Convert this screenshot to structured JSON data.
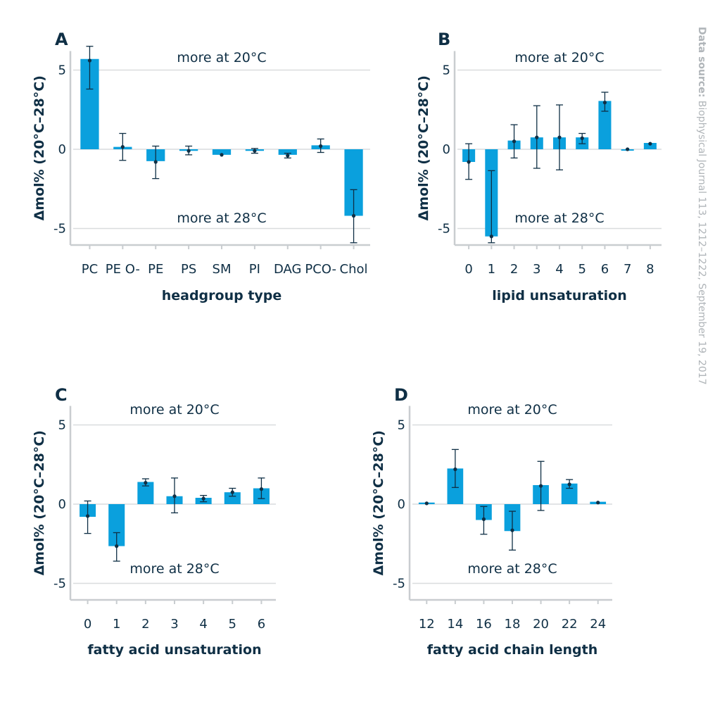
{
  "source": {
    "label": "Data source:",
    "text": " Biophysical Journal 113, 1212–1222, September 19, 2017"
  },
  "colors": {
    "bar": "#0aa0dd",
    "ink": "#0f2f45",
    "grid": "#d9dcde",
    "axis": "#c9cdd0"
  },
  "chart_data": [
    {
      "panel": "A",
      "type": "bar",
      "xlabel": "headgroup type",
      "ylabel": "Δmol% (20°C–28°C)",
      "ylim": [
        -5.6,
        6.2
      ],
      "yticks": [
        -5,
        0,
        5
      ],
      "ytick_labels": [
        "-5",
        "0",
        "5"
      ],
      "annotation_top": "more at 20°C",
      "annotation_bottom": "more at 28°C",
      "categories": [
        "PC",
        "PE O-",
        "PE",
        "PS",
        "SM",
        "PI",
        "DAG",
        "PCO-",
        "Chol"
      ],
      "values": [
        5.7,
        0.15,
        -0.75,
        -0.1,
        -0.35,
        -0.1,
        -0.35,
        0.25,
        -4.2
      ],
      "means": [
        5.6,
        0.15,
        -0.8,
        -0.1,
        -0.35,
        -0.1,
        -0.4,
        0.2,
        -4.2
      ],
      "err_low": [
        3.8,
        -0.7,
        -1.85,
        -0.35,
        -0.35,
        -0.25,
        -0.55,
        -0.2,
        -5.9
      ],
      "err_high": [
        6.5,
        1.0,
        0.2,
        0.2,
        -0.35,
        0.05,
        -0.25,
        0.65,
        -2.55
      ]
    },
    {
      "panel": "B",
      "type": "bar",
      "xlabel": "lipid unsaturation",
      "ylabel": "Δmol% (20°C–28°C)",
      "ylim": [
        -5.6,
        6.2
      ],
      "yticks": [
        -5,
        0,
        5
      ],
      "ytick_labels": [
        "-5",
        "0",
        "5"
      ],
      "annotation_top": "more at 20°C",
      "annotation_bottom": "more at 28°C",
      "categories": [
        "0",
        "1",
        "2",
        "3",
        "4",
        "5",
        "6",
        "7",
        "8"
      ],
      "values": [
        -0.8,
        -5.5,
        0.55,
        0.75,
        0.75,
        0.75,
        3.05,
        -0.05,
        0.4
      ],
      "means": [
        -0.8,
        -5.5,
        0.5,
        0.75,
        0.75,
        0.7,
        2.95,
        0.0,
        0.35
      ],
      "err_low": [
        -1.9,
        -5.9,
        -0.55,
        -1.2,
        -1.3,
        0.35,
        2.4,
        0.0,
        0.35
      ],
      "err_high": [
        0.35,
        -1.35,
        1.55,
        2.75,
        2.8,
        1.0,
        3.6,
        0.0,
        0.35
      ]
    },
    {
      "panel": "C",
      "type": "bar",
      "xlabel": "fatty acid unsaturation",
      "ylabel": "Δmol% (20°C–28°C)",
      "ylim": [
        -5.6,
        6.2
      ],
      "yticks": [
        -5,
        0,
        5
      ],
      "ytick_labels": [
        "-5",
        "0",
        "5"
      ],
      "annotation_top": "more at 20°C",
      "annotation_bottom": "more at 28°C",
      "categories": [
        "0",
        "1",
        "2",
        "3",
        "4",
        "5",
        "6"
      ],
      "values": [
        -0.8,
        -2.65,
        1.4,
        0.5,
        0.4,
        0.75,
        1.0
      ],
      "means": [
        -0.75,
        -2.65,
        1.35,
        0.5,
        0.35,
        0.75,
        0.95
      ],
      "err_low": [
        -1.85,
        -3.6,
        1.15,
        -0.55,
        0.15,
        0.5,
        0.35
      ],
      "err_high": [
        0.2,
        -1.8,
        1.6,
        1.65,
        0.55,
        1.0,
        1.65
      ]
    },
    {
      "panel": "D",
      "type": "bar",
      "xlabel": "fatty acid chain length",
      "ylabel": "Δmol% (20°C–28°C)",
      "ylim": [
        -5.6,
        6.2
      ],
      "yticks": [
        -5,
        0,
        5
      ],
      "ytick_labels": [
        "-5",
        "0",
        "5"
      ],
      "annotation_top": "more at 20°C",
      "annotation_bottom": "more at 28°C",
      "categories": [
        "12",
        "14",
        "16",
        "18",
        "20",
        "22",
        "24"
      ],
      "values": [
        0.1,
        2.25,
        -1.0,
        -1.7,
        1.2,
        1.3,
        0.15
      ],
      "means": [
        0.05,
        2.2,
        -0.95,
        -1.65,
        1.15,
        1.25,
        0.1
      ],
      "err_low": [
        0.05,
        1.05,
        -1.9,
        -2.9,
        -0.4,
        1.0,
        0.1
      ],
      "err_high": [
        0.05,
        3.45,
        -0.15,
        -0.45,
        2.7,
        1.55,
        0.1
      ]
    }
  ]
}
